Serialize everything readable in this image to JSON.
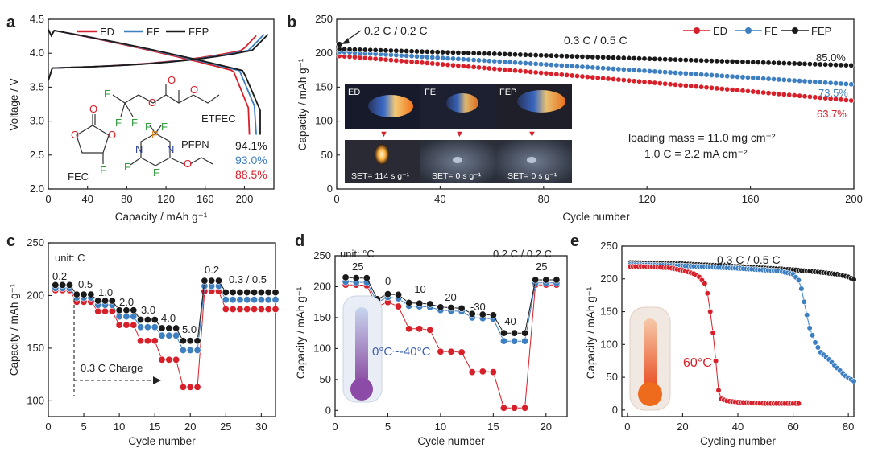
{
  "colors": {
    "ED": "#d8202a",
    "FE": "#3e7fc1",
    "FEP": "#1a1a1a"
  },
  "chart_data": [
    {
      "panel": "a",
      "type": "line",
      "xlabel": "Capacity / mAh g⁻¹",
      "ylabel": "Voltage / V",
      "xlim": [
        0,
        230
      ],
      "ylim": [
        2.0,
        4.5
      ],
      "xticks": [
        "0",
        "40",
        "80",
        "120",
        "160",
        "200"
      ],
      "yticks": [
        "2.0",
        "2.5",
        "3.0",
        "3.5",
        "4.0",
        "4.5"
      ],
      "legend": [
        "ED",
        "FE",
        "FEP"
      ],
      "series": [
        {
          "name": "ED",
          "end_capacity": 205
        },
        {
          "name": "FE",
          "end_capacity": 212
        },
        {
          "name": "FEP",
          "end_capacity": 216
        }
      ],
      "retention": [
        "94.1%",
        "93.0%",
        "88.5%"
      ],
      "molecules": {
        "fec": "FEC",
        "etfec": "ETFEC",
        "pfpn": "PFPN"
      },
      "atoms": {
        "o": "O",
        "f": "F",
        "n": "N",
        "p": "P"
      }
    },
    {
      "panel": "b",
      "type": "scatter",
      "xlabel": "Cycle number",
      "ylabel": "Capacity / mAh g⁻¹",
      "xlim": [
        0,
        200
      ],
      "ylim": [
        0,
        250
      ],
      "xticks": [
        "0",
        "40",
        "80",
        "120",
        "160",
        "200"
      ],
      "yticks": [
        "0",
        "50",
        "100",
        "150",
        "200",
        "250"
      ],
      "legend": [
        "ED",
        "FE",
        "FEP"
      ],
      "series": [
        {
          "name": "ED",
          "start": 196,
          "end": 130
        },
        {
          "name": "FE",
          "start": 202,
          "end": 154
        },
        {
          "name": "FEP",
          "start": 206,
          "end": 182
        }
      ],
      "rate_initial": "0.2 C / 0.2 C",
      "rate_cycle": "0.3 C / 0.5 C",
      "retention_labels": [
        "85.0%",
        "73.5%",
        "63.7%"
      ],
      "loading_mass": "loading mass = 11.0 mg cm⁻²",
      "c_rate_def": "1.0 C = 2.2 mA cm⁻²",
      "flame_labels": [
        "ED",
        "FE",
        "FEP"
      ],
      "set_labels": [
        "SET= 114 s g⁻¹",
        "SET= 0 s g⁻¹",
        "SET= 0 s g⁻¹"
      ]
    },
    {
      "panel": "c",
      "type": "scatter",
      "xlabel": "Cycle number",
      "ylabel": "Capacity / mAh g⁻¹",
      "xlim": [
        0,
        32
      ],
      "ylim": [
        85,
        250
      ],
      "xticks": [
        "0",
        "5",
        "10",
        "15",
        "20",
        "25",
        "30"
      ],
      "yticks": [
        "100",
        "150",
        "200",
        "250"
      ],
      "unit_label": "unit: C",
      "rate_labels": [
        "0.2",
        "0.5",
        "1.0",
        "2.0",
        "3.0",
        "4.0",
        "5.0",
        "0.2",
        "0.3 / 0.5"
      ],
      "charge_label": "0.3 C Charge",
      "steps": [
        {
          "cycles": [
            1,
            2,
            3
          ],
          "ED": 205,
          "FE": 207,
          "FEP": 210
        },
        {
          "cycles": [
            4,
            5,
            6
          ],
          "ED": 194,
          "FE": 198,
          "FEP": 201
        },
        {
          "cycles": [
            7,
            8,
            9
          ],
          "ED": 185,
          "FE": 191,
          "FEP": 195
        },
        {
          "cycles": [
            10,
            11,
            12
          ],
          "ED": 172,
          "FE": 180,
          "FEP": 186
        },
        {
          "cycles": [
            13,
            14,
            15
          ],
          "ED": 157,
          "FE": 170,
          "FEP": 177
        },
        {
          "cycles": [
            16,
            17,
            18
          ],
          "ED": 139,
          "FE": 162,
          "FEP": 169
        },
        {
          "cycles": [
            19,
            20,
            21
          ],
          "ED": 113,
          "FE": 148,
          "FEP": 157
        },
        {
          "cycles": [
            22,
            23,
            24
          ],
          "ED": 204,
          "FE": 209,
          "FEP": 214
        },
        {
          "cycles": [
            25,
            26,
            27,
            28,
            29,
            30,
            31,
            32
          ],
          "ED": 187,
          "FE": 196,
          "FEP": 203
        }
      ]
    },
    {
      "panel": "d",
      "type": "scatter",
      "xlabel": "Cycle number",
      "ylabel": "Capacity / mAh g⁻¹",
      "xlim": [
        0,
        22
      ],
      "ylim": [
        -10,
        250
      ],
      "xticks": [
        "0",
        "5",
        "10",
        "15",
        "20"
      ],
      "yticks": [
        "0",
        "50",
        "100",
        "150",
        "200",
        "250"
      ],
      "unit_label": "unit: °C",
      "rate_label": "0.2 C / 0.2 C",
      "temperature_range": "0°C~-40°C",
      "temp_labels": [
        "25",
        "0",
        "-10",
        "-20",
        "-30",
        "-40",
        "25"
      ],
      "points": [
        {
          "x": 1,
          "ED": 203,
          "FE": 208,
          "FEP": 215
        },
        {
          "x": 2,
          "ED": 203,
          "FE": 207,
          "FEP": 214
        },
        {
          "x": 3,
          "ED": 202,
          "FE": 207,
          "FEP": 214
        },
        {
          "x": 4,
          "ED": 168,
          "FE": 175,
          "FEP": 180
        },
        {
          "x": 5,
          "ED": 175,
          "FE": 183,
          "FEP": 188
        },
        {
          "x": 6,
          "ED": 168,
          "FE": 181,
          "FEP": 187
        },
        {
          "x": 7,
          "ED": 132,
          "FE": 169,
          "FEP": 174
        },
        {
          "x": 8,
          "ED": 132,
          "FE": 168,
          "FEP": 173
        },
        {
          "x": 9,
          "ED": 130,
          "FE": 167,
          "FEP": 172
        },
        {
          "x": 10,
          "ED": 95,
          "FE": 162,
          "FEP": 167
        },
        {
          "x": 11,
          "ED": 95,
          "FE": 161,
          "FEP": 166
        },
        {
          "x": 12,
          "ED": 94,
          "FE": 160,
          "FEP": 165
        },
        {
          "x": 13,
          "ED": 62,
          "FE": 150,
          "FEP": 156
        },
        {
          "x": 14,
          "ED": 63,
          "FE": 149,
          "FEP": 155
        },
        {
          "x": 15,
          "ED": 62,
          "FE": 148,
          "FEP": 154
        },
        {
          "x": 16,
          "ED": 4,
          "FE": 112,
          "FEP": 125
        },
        {
          "x": 17,
          "ED": 4,
          "FE": 112,
          "FEP": 125
        },
        {
          "x": 18,
          "ED": 4,
          "FE": 112,
          "FEP": 125
        },
        {
          "x": 19,
          "ED": 203,
          "FE": 206,
          "FEP": 211
        },
        {
          "x": 20,
          "ED": 203,
          "FE": 206,
          "FEP": 211
        },
        {
          "x": 21,
          "ED": 203,
          "FE": 206,
          "FEP": 211
        }
      ]
    },
    {
      "panel": "e",
      "type": "scatter",
      "xlabel": "Cycling number",
      "ylabel": "Capacity / mAh g⁻¹",
      "xlim": [
        -2,
        82
      ],
      "ylim": [
        -10,
        250
      ],
      "xticks": [
        "0",
        "20",
        "40",
        "60",
        "80"
      ],
      "yticks": [
        "0",
        "50",
        "100",
        "150",
        "200",
        "250"
      ],
      "rate_label": "0.3 C / 0.5 C",
      "temperature": "60°C",
      "series_ED": [
        [
          1,
          219
        ],
        [
          5,
          219
        ],
        [
          10,
          218
        ],
        [
          15,
          217
        ],
        [
          20,
          213
        ],
        [
          24,
          208
        ],
        [
          26,
          203
        ],
        [
          28,
          193
        ],
        [
          29,
          178
        ],
        [
          30,
          150
        ],
        [
          31,
          118
        ],
        [
          32,
          75
        ],
        [
          33,
          30
        ],
        [
          34,
          17
        ],
        [
          36,
          14
        ],
        [
          40,
          12
        ],
        [
          45,
          11
        ],
        [
          50,
          10
        ],
        [
          55,
          10
        ],
        [
          60,
          10
        ],
        [
          62,
          10
        ]
      ],
      "series_FE": [
        [
          1,
          222
        ],
        [
          20,
          220
        ],
        [
          40,
          216
        ],
        [
          55,
          212
        ],
        [
          60,
          207
        ],
        [
          62,
          198
        ],
        [
          63,
          185
        ],
        [
          64,
          165
        ],
        [
          65,
          145
        ],
        [
          66,
          125
        ],
        [
          68,
          103
        ],
        [
          70,
          88
        ],
        [
          73,
          77
        ],
        [
          76,
          64
        ],
        [
          79,
          52
        ],
        [
          82,
          44
        ]
      ],
      "series_FEP": [
        [
          1,
          225
        ],
        [
          20,
          223
        ],
        [
          40,
          219
        ],
        [
          60,
          214
        ],
        [
          70,
          210
        ],
        [
          76,
          207
        ],
        [
          80,
          203
        ],
        [
          82,
          199
        ]
      ]
    }
  ]
}
